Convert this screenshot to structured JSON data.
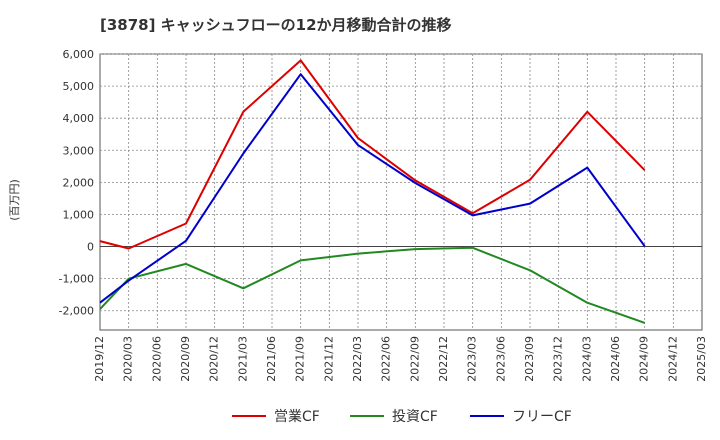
{
  "chart_data": {
    "type": "line",
    "title": "[3878]  キャッシュフローの12か月移動合計の推移",
    "ylabel": "(百万円)",
    "xlabel": "",
    "ylim": [
      -2600,
      6000
    ],
    "y_ticks": [
      6000,
      5000,
      4000,
      3000,
      2000,
      1000,
      0,
      -1000,
      -2000
    ],
    "y_tick_labels": [
      "6,000",
      "5,000",
      "4,000",
      "3,000",
      "2,000",
      "1,000",
      "0",
      "-1,000",
      "-2,000"
    ],
    "categories": [
      "2019/12",
      "2020/03",
      "2020/06",
      "2020/09",
      "2020/12",
      "2021/03",
      "2021/06",
      "2021/09",
      "2021/12",
      "2022/03",
      "2022/06",
      "2022/09",
      "2022/12",
      "2023/03",
      "2023/06",
      "2023/09",
      "2023/12",
      "2024/03",
      "2024/06",
      "2024/09",
      "2024/12",
      "2025/03"
    ],
    "series": [
      {
        "name": "営業CF",
        "color": "#dd0000",
        "values": [
          170,
          -60,
          null,
          720,
          null,
          4200,
          null,
          5800,
          null,
          3380,
          null,
          2060,
          null,
          1040,
          null,
          2080,
          null,
          4200,
          null,
          2380,
          null,
          null
        ]
      },
      {
        "name": "投資CF",
        "color": "#228822",
        "values": [
          -1950,
          -1000,
          null,
          -540,
          null,
          -1300,
          null,
          -430,
          null,
          -220,
          null,
          -80,
          null,
          -40,
          null,
          -740,
          null,
          -1750,
          null,
          -2380,
          null,
          null
        ]
      },
      {
        "name": "フリーCF",
        "color": "#0000cc",
        "values": [
          -1750,
          -1060,
          null,
          180,
          null,
          2900,
          null,
          5370,
          null,
          3160,
          null,
          1980,
          null,
          970,
          null,
          1340,
          null,
          2460,
          null,
          10,
          null,
          null
        ]
      }
    ],
    "legend_position": "bottom-center",
    "grid": true
  }
}
